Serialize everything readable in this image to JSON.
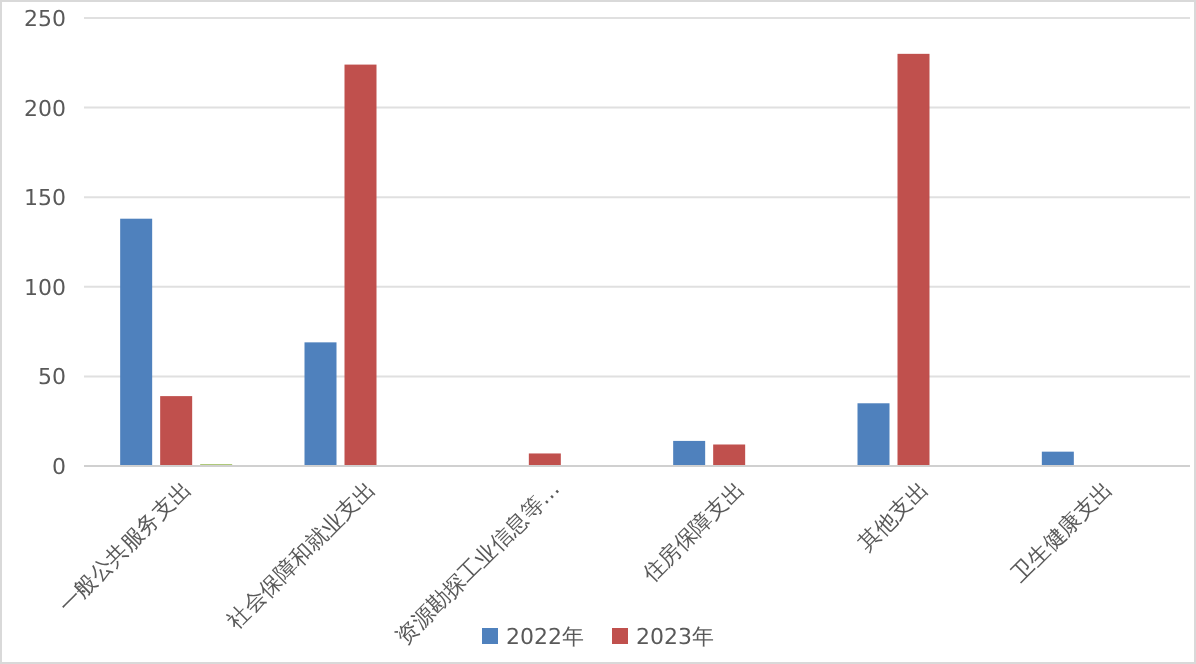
{
  "chart_data": {
    "type": "bar",
    "categories": [
      "一般公共服务支出",
      "社会保障和就业支出",
      "资源勘探工业信息等…",
      "住房保障支出",
      "其他支出",
      "卫生健康支出"
    ],
    "series": [
      {
        "name": "2022年",
        "color": "#4f81bd",
        "values": [
          138,
          69,
          null,
          14,
          35,
          8
        ]
      },
      {
        "name": "2023年",
        "color": "#c0504d",
        "values": [
          39,
          224,
          7,
          12,
          230,
          null
        ]
      },
      {
        "color": "#9bbb59",
        "values": [
          1,
          null,
          null,
          null,
          null,
          null
        ]
      }
    ],
    "ylim": [
      0,
      250
    ],
    "yticks": [
      0,
      50,
      100,
      150,
      200,
      250
    ],
    "grid": "y",
    "legend": "bottom"
  }
}
